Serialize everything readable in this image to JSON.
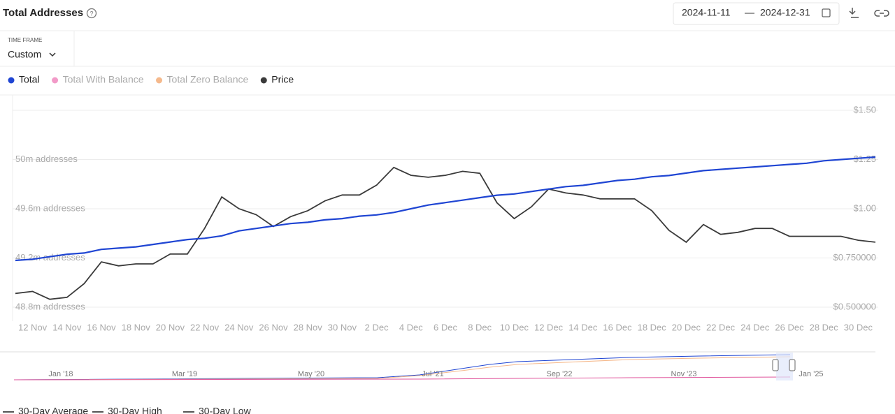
{
  "header": {
    "title": "Total Addresses",
    "date_from": "2024-11-11",
    "date_sep": "—",
    "date_to": "2024-12-31"
  },
  "timeframe": {
    "label": "TIME FRAME",
    "value": "Custom"
  },
  "chart_data": {
    "type": "line",
    "categories": [
      null,
      "12 Nov",
      null,
      "14 Nov",
      null,
      "16 Nov",
      null,
      "18 Nov",
      null,
      "20 Nov",
      null,
      "22 Nov",
      null,
      "24 Nov",
      null,
      "26 Nov",
      null,
      "28 Nov",
      null,
      "30 Nov",
      null,
      "2 Dec",
      null,
      "4 Dec",
      null,
      "6 Dec",
      null,
      "8 Dec",
      null,
      "10 Dec",
      null,
      "12 Dec",
      null,
      "14 Dec",
      null,
      "16 Dec",
      null,
      "18 Dec",
      null,
      "20 Dec",
      null,
      "22 Dec",
      null,
      "24 Dec",
      null,
      "26 Dec",
      null,
      "28 Dec",
      null,
      "30 Dec",
      null
    ],
    "ylim": [
      48.8,
      50.4
    ],
    "yticks": [
      {
        "value": 48.8,
        "label": "48.8m addresses"
      },
      {
        "value": 49.2,
        "label": "49.2m addresses"
      },
      {
        "value": 49.6,
        "label": "49.6m addresses"
      },
      {
        "value": 50,
        "label": "50m addresses"
      }
    ],
    "y2lim": [
      0.5,
      1.5
    ],
    "y2ticks": [
      {
        "value": 0.5,
        "label": "$0.500000"
      },
      {
        "value": 0.75,
        "label": "$0.750000"
      },
      {
        "value": 1,
        "label": "$1.00"
      },
      {
        "value": 1.25,
        "label": "$1.25"
      },
      {
        "value": 1.5,
        "label": "$1.50"
      }
    ],
    "grid": true,
    "series": [
      {
        "name": "Total",
        "color": "#1f45d3",
        "values": [
          49.18,
          49.19,
          49.21,
          49.23,
          49.24,
          49.27,
          49.28,
          49.29,
          49.31,
          49.33,
          49.35,
          49.36,
          49.38,
          49.42,
          49.44,
          49.46,
          49.48,
          49.49,
          49.51,
          49.52,
          49.54,
          49.55,
          49.57,
          49.6,
          49.63,
          49.65,
          49.67,
          49.69,
          49.71,
          49.72,
          49.74,
          49.76,
          49.78,
          49.79,
          49.81,
          49.83,
          49.84,
          49.86,
          49.87,
          49.89,
          49.91,
          49.92,
          49.93,
          49.94,
          49.95,
          49.96,
          49.97,
          49.99,
          50.0,
          50.01,
          50.02
        ]
      },
      {
        "name": "Total With Balance",
        "color": "#f29ac8",
        "hidden": true
      },
      {
        "name": "Total Zero Balance",
        "color": "#f5b98c",
        "hidden": true
      },
      {
        "name": "Price",
        "color": "#3a3a3a",
        "axis": "y2",
        "values": [
          0.57,
          0.58,
          0.54,
          0.55,
          0.62,
          0.73,
          0.71,
          0.72,
          0.72,
          0.77,
          0.77,
          0.9,
          1.06,
          1.0,
          0.97,
          0.91,
          0.96,
          0.99,
          1.04,
          1.07,
          1.07,
          1.12,
          1.21,
          1.17,
          1.16,
          1.17,
          1.19,
          1.18,
          1.03,
          0.95,
          1.01,
          1.1,
          1.08,
          1.07,
          1.05,
          1.05,
          1.05,
          0.99,
          0.89,
          0.83,
          0.92,
          0.87,
          0.88,
          0.9,
          0.9,
          0.86,
          0.86,
          0.86,
          0.86,
          0.84,
          0.83
        ]
      }
    ]
  },
  "navigator": {
    "labels": [
      "Jan '18",
      "Mar '19",
      "May '20",
      "Jul '21",
      "Sep '22",
      "Nov '23",
      "Jan '25"
    ]
  },
  "footer": {
    "items": [
      "30-Day Average",
      "30-Day High",
      "30-Day Low"
    ]
  }
}
